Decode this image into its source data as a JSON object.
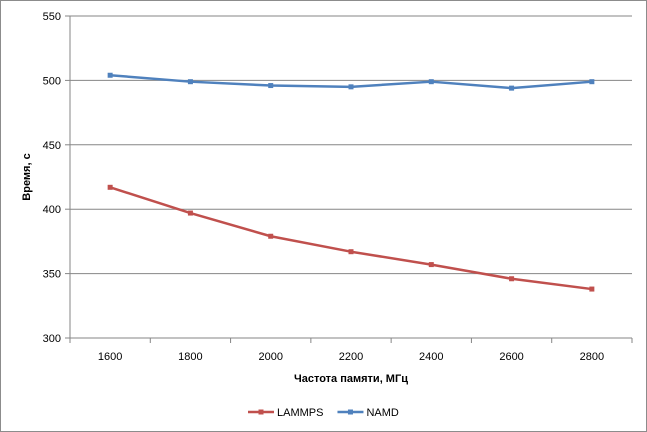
{
  "chart_data": {
    "type": "line",
    "xlabel": "Частота  памяти,  МГц",
    "ylabel": "Время,  с",
    "x": [
      1600,
      1800,
      2000,
      2200,
      2400,
      2600,
      2800
    ],
    "ylim": [
      300,
      550
    ],
    "yticks": [
      300,
      350,
      400,
      450,
      500,
      550
    ],
    "grid": "horizontal",
    "legend": "bottom",
    "series": [
      {
        "name": "LAMMPS",
        "color": "#c0504d",
        "values": [
          417,
          397,
          379,
          367,
          357,
          346,
          338
        ]
      },
      {
        "name": "NAMD",
        "color": "#4f81bd",
        "values": [
          504,
          499,
          496,
          495,
          499,
          494,
          499
        ]
      }
    ]
  }
}
